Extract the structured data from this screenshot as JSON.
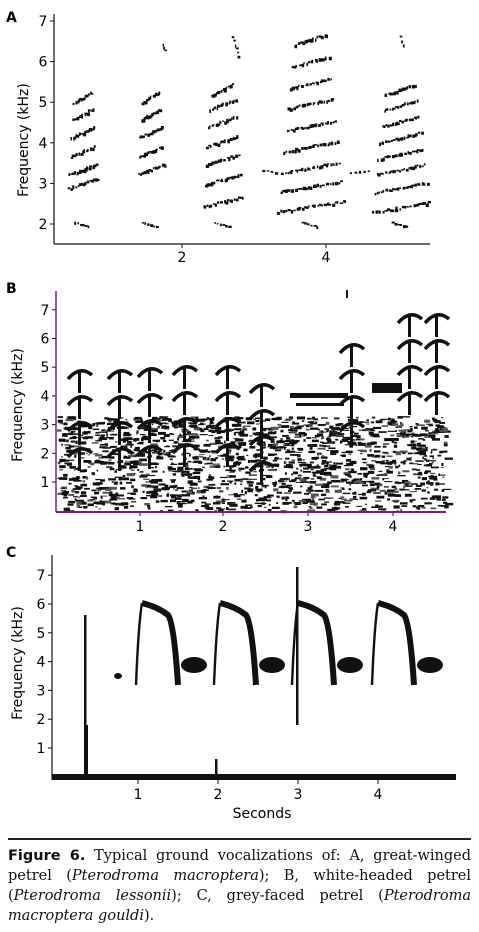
{
  "figure": {
    "panels": [
      {
        "letter": "A",
        "ylabel": "Frequency (kHz)",
        "xlabel": "",
        "yticks": [
          "2",
          "3",
          "4",
          "5",
          "6",
          "7"
        ],
        "xticks": [
          "2",
          "4"
        ]
      },
      {
        "letter": "B",
        "ylabel": "Frequency (kHz)",
        "xlabel": "",
        "yticks": [
          "1",
          "2",
          "3",
          "4",
          "5",
          "6",
          "7"
        ],
        "xticks": [
          "1",
          "2",
          "3",
          "4"
        ]
      },
      {
        "letter": "C",
        "ylabel": "Frequency (kHz)",
        "xlabel": "Seconds",
        "yticks": [
          "1",
          "2",
          "3",
          "4",
          "5",
          "6",
          "7"
        ],
        "xticks": [
          "1",
          "2",
          "3",
          "4"
        ]
      }
    ],
    "caption": {
      "label": "Figure 6.",
      "part1": " Typical ground vocalizations of: A, great-winged petrel (",
      "species_a": "Pterodroma macroptera",
      "part2": "); B, white-headed petrel (",
      "species_b": "Pterodroma lessonii",
      "part3": "); C, grey-faced petrel (",
      "species_c": "Pterodroma macroptera gouldi",
      "part4": ")."
    }
  }
}
